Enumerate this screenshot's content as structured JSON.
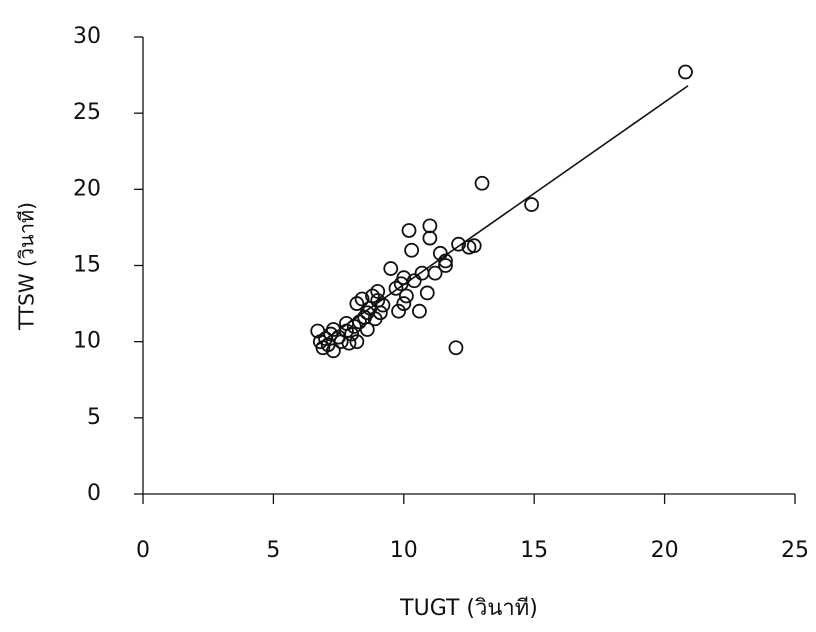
{
  "chart_data": {
    "type": "scatter",
    "x_label": "TUGT (วินาที)",
    "y_label": "TTSW (วินาที)",
    "x": [
      6.7,
      6.8,
      6.9,
      7.0,
      7.1,
      7.2,
      7.3,
      7.3,
      7.5,
      7.6,
      7.8,
      7.8,
      7.9,
      8.0,
      8.1,
      8.2,
      8.2,
      8.3,
      8.4,
      8.5,
      8.6,
      8.6,
      8.7,
      8.8,
      8.9,
      9.0,
      9.0,
      9.1,
      9.2,
      9.5,
      9.7,
      9.8,
      9.9,
      10.0,
      10.0,
      10.1,
      10.2,
      10.3,
      10.4,
      10.6,
      10.7,
      10.9,
      11.0,
      11.0,
      11.2,
      11.4,
      11.6,
      11.6,
      12.0,
      12.1,
      12.5,
      12.7,
      13.0,
      14.9,
      20.8
    ],
    "y": [
      10.7,
      10.0,
      9.6,
      10.2,
      9.8,
      10.5,
      9.4,
      10.8,
      10.3,
      10.0,
      10.7,
      11.2,
      9.9,
      10.5,
      11.0,
      10.0,
      12.5,
      11.3,
      12.8,
      11.6,
      10.8,
      11.9,
      12.2,
      13.0,
      11.5,
      12.7,
      13.3,
      11.9,
      12.4,
      14.8,
      13.5,
      12.0,
      13.8,
      12.5,
      14.2,
      13.0,
      17.3,
      16.0,
      14.0,
      12.0,
      14.5,
      13.2,
      16.8,
      17.6,
      14.5,
      15.8,
      15.0,
      15.3,
      9.6,
      16.4,
      16.2,
      16.3,
      20.4,
      19.0,
      27.7
    ],
    "color": "#111111",
    "fit_line": {
      "x": [
        6.7,
        20.9
      ],
      "y": [
        9.8,
        26.8
      ]
    },
    "xlim": [
      0,
      25
    ],
    "xticks": [
      0,
      5,
      10,
      15,
      20,
      25
    ],
    "ylim": [
      0,
      30
    ],
    "yticks": [
      0,
      5,
      10,
      15,
      20,
      25,
      30
    ]
  }
}
